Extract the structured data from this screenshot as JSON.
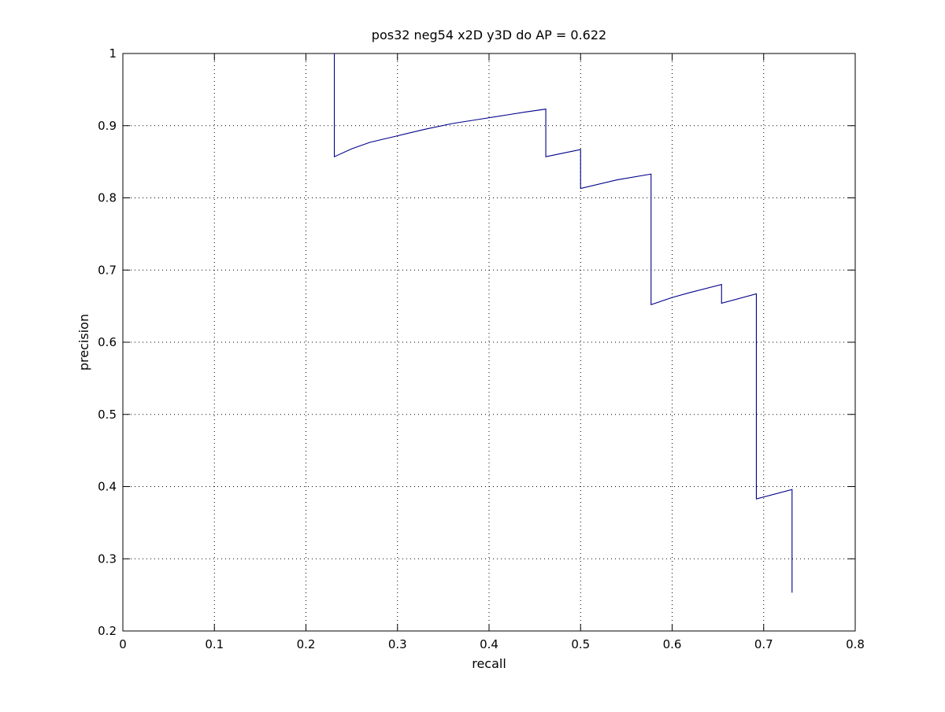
{
  "chart_data": {
    "type": "line",
    "title": "pos32 neg54 x2D y3D do AP = 0.622",
    "xlabel": "recall",
    "ylabel": "precision",
    "xlim": [
      0,
      0.8
    ],
    "ylim": [
      0.2,
      1
    ],
    "xticks": [
      0,
      0.1,
      0.2,
      0.3,
      0.4,
      0.5,
      0.6,
      0.7,
      0.8
    ],
    "xtick_labels": [
      "0",
      "0.1",
      "0.2",
      "0.3",
      "0.4",
      "0.5",
      "0.6",
      "0.7",
      "0.8"
    ],
    "yticks": [
      0.2,
      0.3,
      0.4,
      0.5,
      0.6,
      0.7,
      0.8,
      0.9,
      1
    ],
    "ytick_labels": [
      "0.2",
      "0.3",
      "0.4",
      "0.5",
      "0.6",
      "0.7",
      "0.8",
      "0.9",
      "1"
    ],
    "grid": true,
    "line_color": "#00008b",
    "series": [
      {
        "x": [
          0.231,
          0.231,
          0.25,
          0.27,
          0.3,
          0.33,
          0.36,
          0.39,
          0.42,
          0.44,
          0.462,
          0.462,
          0.5,
          0.5,
          0.54,
          0.577,
          0.577,
          0.6,
          0.62,
          0.654,
          0.654,
          0.692,
          0.692,
          0.731,
          0.731
        ],
        "y": [
          1.0,
          0.857,
          0.868,
          0.877,
          0.886,
          0.895,
          0.903,
          0.909,
          0.915,
          0.919,
          0.923,
          0.857,
          0.867,
          0.813,
          0.825,
          0.833,
          0.652,
          0.662,
          0.669,
          0.68,
          0.654,
          0.667,
          0.383,
          0.396,
          0.253
        ]
      }
    ]
  }
}
